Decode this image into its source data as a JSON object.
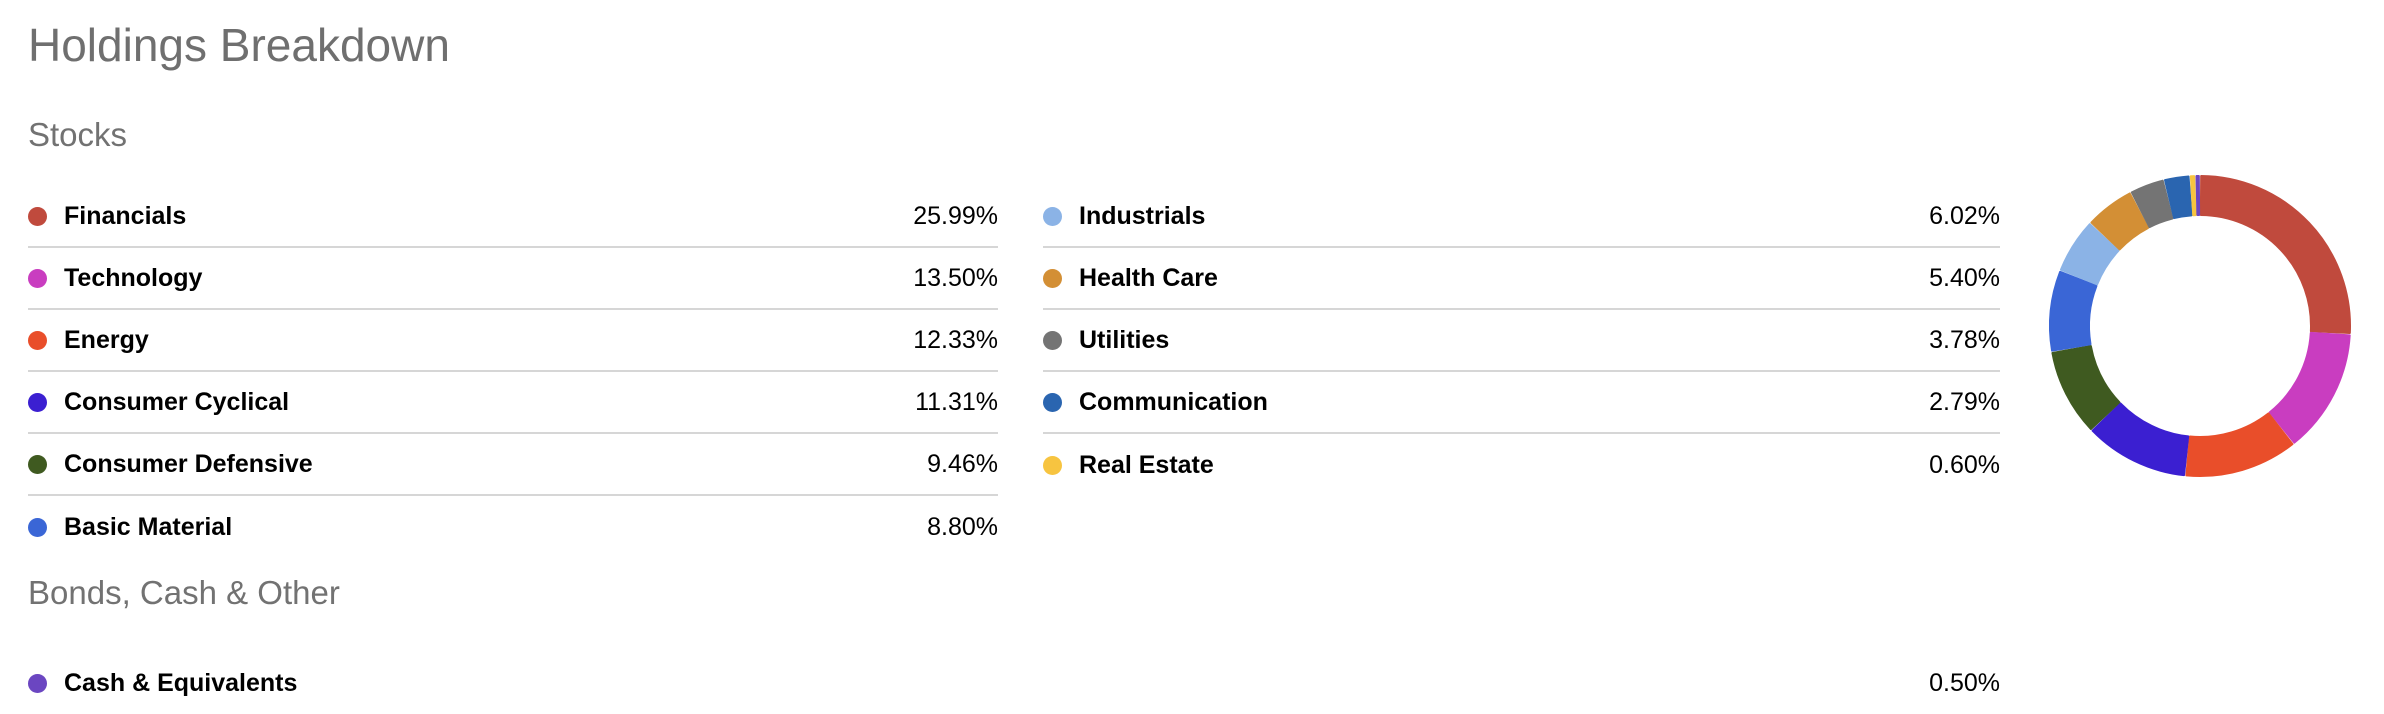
{
  "page_title": "Holdings Breakdown",
  "sections": {
    "stocks_title": "Stocks",
    "bonds_title": "Bonds, Cash & Other"
  },
  "stocks_left": [
    {
      "label": "Financials",
      "value": "25.99%",
      "color": "#C04A3D"
    },
    {
      "label": "Technology",
      "value": "13.50%",
      "color": "#C93DC0"
    },
    {
      "label": "Energy",
      "value": "12.33%",
      "color": "#E94E2A"
    },
    {
      "label": "Consumer Cyclical",
      "value": "11.31%",
      "color": "#3B1FD1"
    },
    {
      "label": "Consumer Defensive",
      "value": "9.46%",
      "color": "#3F5A20"
    },
    {
      "label": "Basic Material",
      "value": "8.80%",
      "color": "#3A66D6"
    }
  ],
  "stocks_right": [
    {
      "label": "Industrials",
      "value": "6.02%",
      "color": "#8BB3E6"
    },
    {
      "label": "Health Care",
      "value": "5.40%",
      "color": "#D38F35"
    },
    {
      "label": "Utilities",
      "value": "3.78%",
      "color": "#747474"
    },
    {
      "label": "Communication",
      "value": "2.79%",
      "color": "#2A65B0"
    },
    {
      "label": "Real Estate",
      "value": "0.60%",
      "color": "#F7C440"
    }
  ],
  "bonds": [
    {
      "label": "Cash & Equivalents",
      "value": "0.50%",
      "color": "#6B46C1"
    }
  ],
  "chart_data": {
    "type": "pie",
    "style": "donut",
    "categories": [
      "Financials",
      "Technology",
      "Energy",
      "Consumer Cyclical",
      "Consumer Defensive",
      "Basic Material",
      "Industrials",
      "Health Care",
      "Utilities",
      "Communication",
      "Real Estate",
      "Cash & Equivalents"
    ],
    "values": [
      25.99,
      13.5,
      12.33,
      11.31,
      9.46,
      8.8,
      6.02,
      5.4,
      3.78,
      2.79,
      0.6,
      0.5
    ],
    "colors": [
      "#C04A3D",
      "#C93DC0",
      "#E94E2A",
      "#3B1FD1",
      "#3F5A20",
      "#3A66D6",
      "#8BB3E6",
      "#D38F35",
      "#747474",
      "#2A65B0",
      "#F7C440",
      "#6B46C1"
    ],
    "start": "top",
    "direction": "clockwise",
    "legend": "left"
  }
}
